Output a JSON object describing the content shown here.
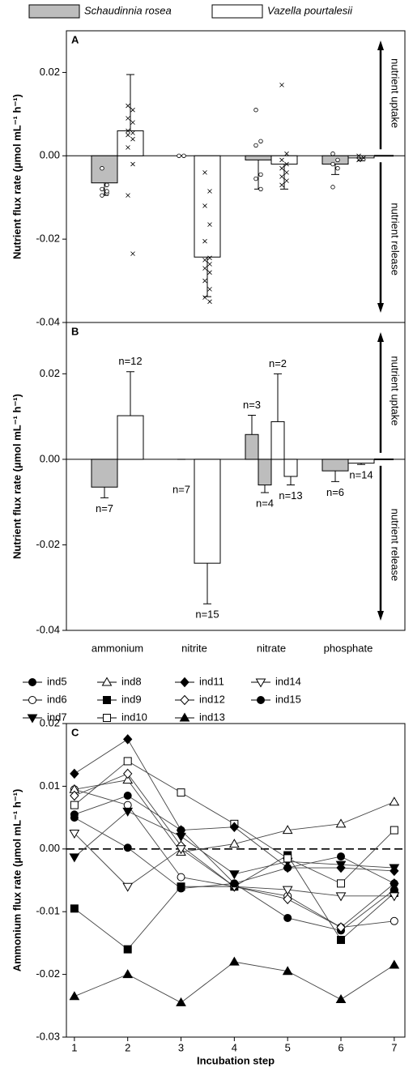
{
  "chart_data": [
    {
      "type": "bar",
      "panel_label": "A",
      "y_label": "Nutrient flux rate (µmol mL⁻¹ h⁻¹)",
      "ylim": [
        -0.04,
        0.03
      ],
      "yticks": [
        {
          "value": 0.02,
          "label": "0.02"
        },
        {
          "value": 0,
          "label": "0.00"
        },
        {
          "value": -0.02,
          "label": "-0.02"
        },
        {
          "value": -0.04,
          "label": "-0.04"
        }
      ],
      "zero_line": "solid",
      "annotations": [
        "nutrient uptake",
        "nutrient release"
      ],
      "series": [
        {
          "name": "Schaudinnia rosea",
          "color": "#bdbdbd",
          "point_marker": "circle-open",
          "values": [
            -0.0065,
            0,
            -0.001,
            -0.002
          ],
          "errors": [
            0.003,
            0,
            0.007,
            0.0025
          ],
          "points": [
            [
              -0.003,
              -0.007,
              -0.008,
              -0.009,
              -0.0095,
              -0.0085
            ],
            [
              0,
              0
            ],
            [
              0.011,
              0.0035,
              0.0025,
              -0.0045,
              -0.0055,
              -0.008
            ],
            [
              0.0005,
              -0.001,
              -0.002,
              -0.003,
              -0.0075
            ]
          ]
        },
        {
          "name": "Vazella pourtalesii",
          "color": "#ffffff",
          "point_marker": "x",
          "values": [
            0.006,
            -0.0243,
            -0.002,
            -0.0005
          ],
          "errors": [
            0.0135,
            0.0095,
            0.006,
            0.0007
          ],
          "points": [
            [
              0.012,
              0.011,
              0.009,
              0.008,
              0.006,
              0.0055,
              0.005,
              0.004,
              0.002,
              -0.002,
              -0.0095,
              -0.0235
            ],
            [
              -0.004,
              -0.0085,
              -0.012,
              -0.0165,
              -0.0205,
              -0.0245,
              -0.025,
              -0.026,
              -0.027,
              -0.028,
              -0.03,
              -0.032,
              -0.034,
              -0.035
            ],
            [
              0.017,
              0.0005,
              -0.001,
              -0.002,
              -0.003,
              -0.004,
              -0.005,
              -0.006,
              -0.007
            ],
            [
              0,
              -0.0005,
              -0.001,
              -0.0005
            ]
          ]
        }
      ]
    },
    {
      "type": "bar",
      "panel_label": "B",
      "y_label": "Nutrient flux rate (µmol mL⁻¹ h⁻¹)",
      "categories": [
        "ammonium",
        "nitrite",
        "nitrate",
        "phosphate"
      ],
      "ylim": [
        -0.04,
        0.032
      ],
      "yticks": [
        {
          "value": 0.02,
          "label": "0.02"
        },
        {
          "value": 0,
          "label": "0.00"
        },
        {
          "value": -0.02,
          "label": "-0.02"
        },
        {
          "value": -0.04,
          "label": "-0.04"
        }
      ],
      "zero_line": "solid",
      "annotations": [
        "nutrient uptake",
        "nutrient release"
      ],
      "series": [
        {
          "color": "#bdbdbd",
          "values": [
            -0.0065,
            0,
            [
              0.0058,
              -0.006
            ],
            -0.0027
          ],
          "errors": [
            0.0025,
            0,
            [
              0.0045,
              0.0018
            ],
            0.0025
          ],
          "value_labels": [
            "n=7",
            "n=7",
            [
              "n=3",
              "n=4"
            ],
            "n=6"
          ]
        },
        {
          "color": "#ffffff",
          "values": [
            0.0102,
            -0.0243,
            [
              0.0088,
              -0.004
            ],
            -0.0009
          ],
          "errors": [
            0.0103,
            0.0095,
            [
              0.0112,
              0.002
            ],
            0.0003
          ],
          "value_labels": [
            "n=12",
            "n=15",
            [
              "n=2",
              "n=13"
            ],
            "n=14"
          ]
        }
      ]
    },
    {
      "type": "line",
      "panel_label": "C",
      "y_label": "Ammonium flux rate (µmol mL⁻¹ h⁻¹)",
      "x_label": "Incubation step",
      "x": [
        1,
        2,
        3,
        4,
        5,
        6,
        7
      ],
      "xlim": [
        0.85,
        7.2
      ],
      "xticks": [
        1,
        2,
        3,
        4,
        5,
        6,
        7
      ],
      "ylim": [
        -0.03,
        0.02
      ],
      "yticks": [
        {
          "value": 0.02,
          "label": "0.02"
        },
        {
          "value": 0.01,
          "label": "0.01"
        },
        {
          "value": 0,
          "label": "0.00"
        },
        {
          "value": -0.01,
          "label": "-0.01"
        },
        {
          "value": -0.02,
          "label": "-0.02"
        },
        {
          "value": -0.03,
          "label": "-0.03"
        }
      ],
      "zero_line": "dashed",
      "series": [
        {
          "name": "ind5",
          "color": "#000000",
          "marker": "circle",
          "values": [
            0.0055,
            0.0085,
            0.003,
            -0.0055,
            -0.011,
            -0.013,
            -0.0065
          ]
        },
        {
          "name": "ind6",
          "color": "#000000",
          "marker": "circle-open",
          "values": [
            0.0095,
            0.007,
            -0.0045,
            -0.006,
            -0.0075,
            -0.0125,
            -0.0115
          ]
        },
        {
          "name": "ind7",
          "color": "#000000",
          "marker": "triangle-down",
          "values": [
            -0.0013,
            0.006,
            0.002,
            -0.004,
            -0.002,
            -0.0025,
            -0.003
          ]
        },
        {
          "name": "ind8",
          "color": "#000000",
          "marker": "triangle-up-open",
          "values": [
            0.0095,
            0.011,
            -0.0005,
            0.0008,
            0.003,
            0.004,
            0.0075
          ]
        },
        {
          "name": "ind9",
          "color": "#000000",
          "marker": "square",
          "values": [
            -0.0095,
            -0.016,
            -0.006,
            -0.006,
            -0.001,
            -0.0145,
            -0.007
          ]
        },
        {
          "name": "ind10",
          "color": "#000000",
          "marker": "square-open",
          "values": [
            0.007,
            0.014,
            0.009,
            0.004,
            -0.0015,
            -0.0055,
            0.003
          ]
        },
        {
          "name": "ind11",
          "color": "#000000",
          "marker": "diamond",
          "values": [
            0.012,
            0.0175,
            0.003,
            0.0035,
            -0.003,
            -0.003,
            -0.0035
          ]
        },
        {
          "name": "ind12",
          "color": "#000000",
          "marker": "diamond-open",
          "values": [
            0.0085,
            0.012,
            0.0005,
            -0.006,
            -0.008,
            -0.0125,
            -0.0055
          ]
        },
        {
          "name": "ind13",
          "color": "#000000",
          "marker": "triangle-up",
          "values": [
            -0.0235,
            -0.02,
            -0.0245,
            -0.018,
            -0.0195,
            -0.024,
            -0.0185
          ]
        },
        {
          "name": "ind14",
          "color": "#000000",
          "marker": "triangle-down-open",
          "values": [
            0.0025,
            -0.006,
            0,
            -0.006,
            -0.0065,
            -0.0075,
            -0.0075
          ]
        },
        {
          "name": "ind15",
          "color": "#000000",
          "marker": "circle",
          "values": [
            0.005,
            0.0002,
            -0.0063,
            -0.0055,
            -0.003,
            -0.0012,
            -0.0055
          ]
        }
      ]
    }
  ]
}
